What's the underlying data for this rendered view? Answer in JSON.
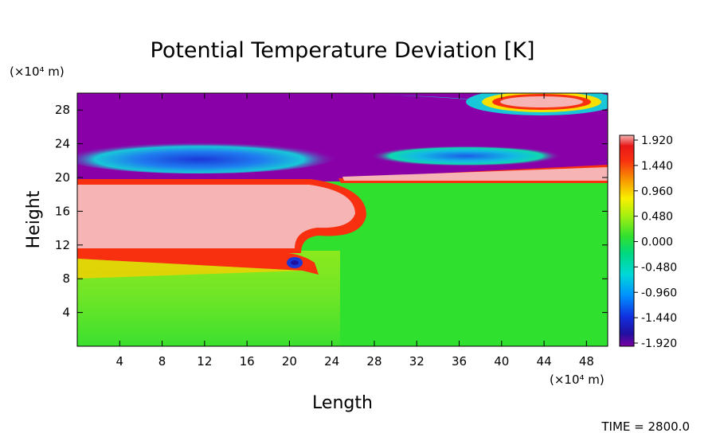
{
  "chart_data": {
    "type": "heatmap",
    "title": "Potential Temperature Deviation [K]",
    "xlabel": "Length",
    "ylabel": "Height",
    "x_unit": "(×10⁴ m)",
    "y_unit": "(×10⁴ m)",
    "xlim": [
      0,
      50
    ],
    "ylim": [
      0,
      30
    ],
    "x_ticks": [
      4,
      8,
      12,
      16,
      20,
      24,
      28,
      32,
      36,
      40,
      44,
      48
    ],
    "y_ticks": [
      4,
      8,
      12,
      16,
      20,
      24,
      28
    ],
    "colorbar": {
      "range": [
        -1.92,
        1.92
      ],
      "labels": [
        "1.920",
        "1.440",
        "0.960",
        "0.480",
        "0.000",
        "-0.480",
        "-0.960",
        "-1.440",
        "-1.920"
      ]
    },
    "field_regions": [
      {
        "label": "upper layer",
        "value": -1.92
      },
      {
        "label": "lower layer",
        "value": 0.0
      },
      {
        "label": "warm block",
        "value": 1.92
      },
      {
        "label": "cold lens left",
        "value": -1.2
      },
      {
        "label": "cold lens right",
        "value": -1.1
      },
      {
        "label": "warm ring top right",
        "value": 1.92
      }
    ],
    "time_label": "TIME = 2800.0"
  },
  "colors": {
    "max": "#F6B4B4",
    "min": "#8A00A8",
    "zero": "#2FE02F"
  }
}
